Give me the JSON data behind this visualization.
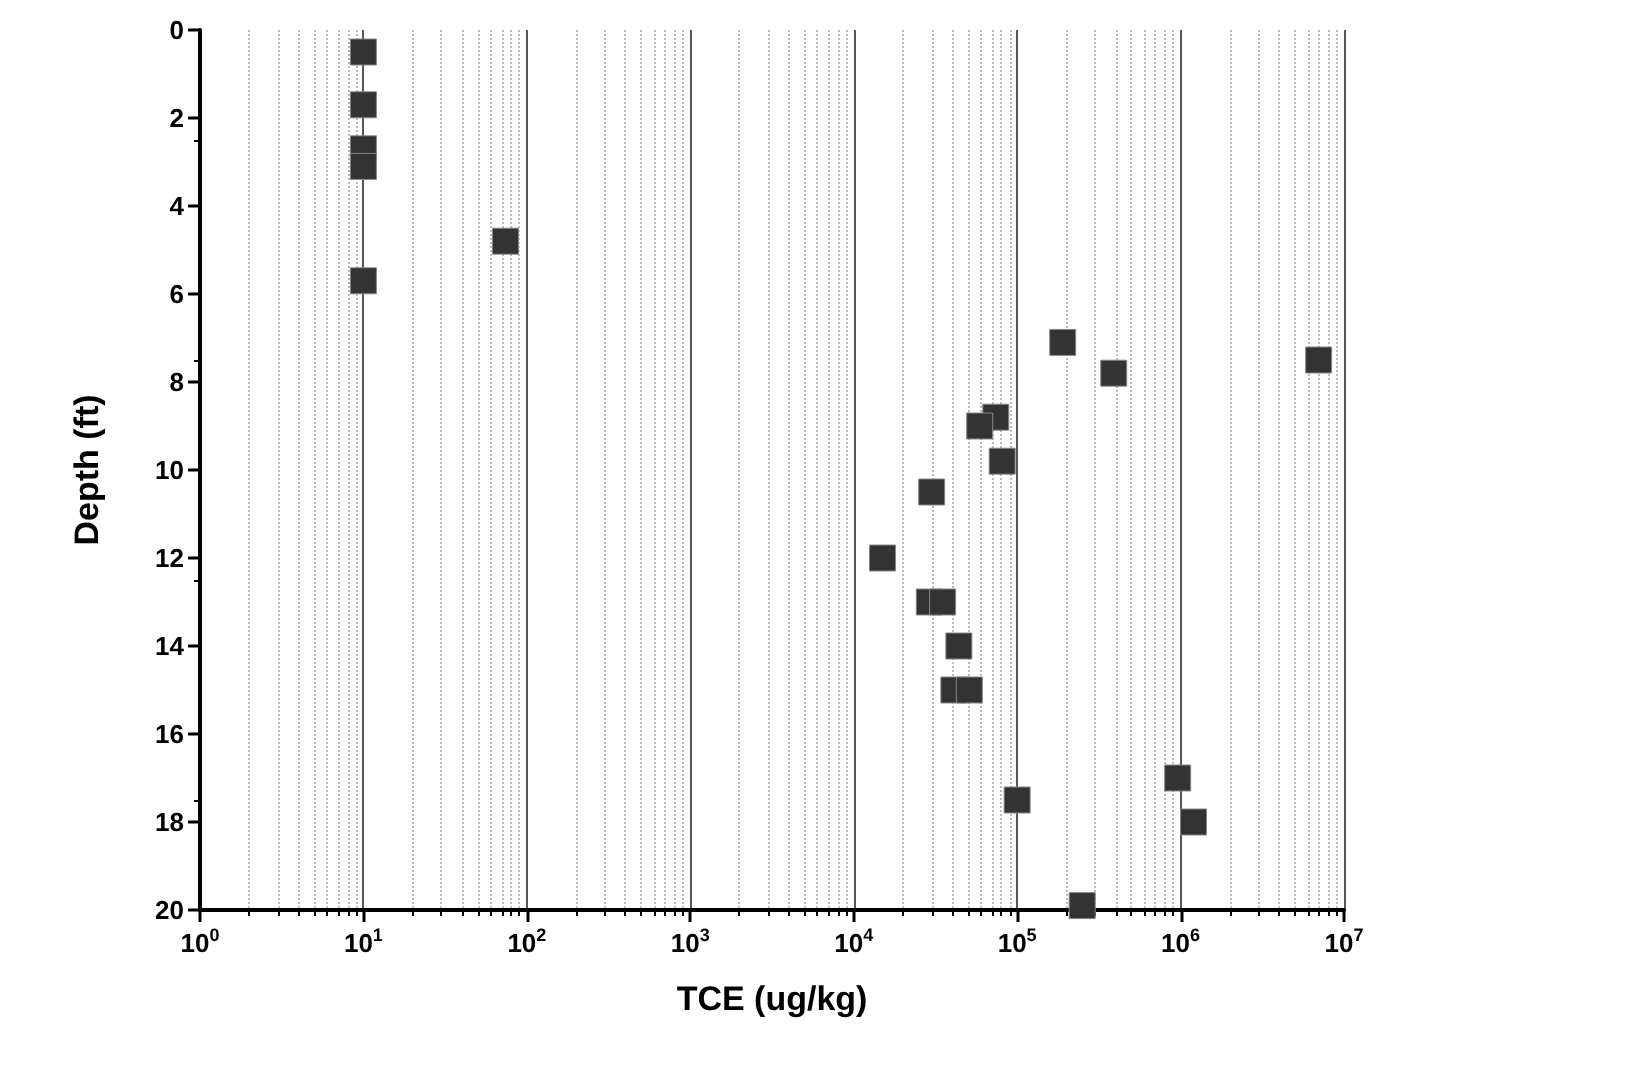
{
  "chart_data": {
    "type": "scatter",
    "xlabel": "TCE (ug/kg)",
    "ylabel": "Depth (ft)",
    "log": "x",
    "grid": "x",
    "marker": "square",
    "xlim": [
      1,
      10000000
    ],
    "xticks": [
      {
        "value": 1,
        "label": "10$^{0}$"
      },
      {
        "value": 10,
        "label": "10$^{1}$"
      },
      {
        "value": 100,
        "label": "10$^{2}$"
      },
      {
        "value": 1000,
        "label": "10$^{3}$"
      },
      {
        "value": 10000,
        "label": "10$^{4}$"
      },
      {
        "value": 100000,
        "label": "10$^{5}$"
      },
      {
        "value": 1000000,
        "label": "10$^{6}$"
      },
      {
        "value": 10000000,
        "label": "10$^{7}$"
      }
    ],
    "ylim": [
      20,
      0
    ],
    "yticks": [
      0,
      2,
      4,
      6,
      8,
      10,
      12,
      14,
      16,
      18,
      20
    ],
    "series": [
      {
        "color": "#333333",
        "x": [
          10,
          10,
          10,
          10,
          74,
          10,
          190000,
          390000,
          7000000,
          74000,
          59000,
          81000,
          30000,
          15000,
          29000,
          35000,
          44000,
          41000,
          51000,
          960000,
          100000,
          1200000,
          250000
        ],
        "values": [
          0.5,
          1.7,
          2.7,
          3.1,
          4.8,
          5.7,
          7.1,
          7.8,
          7.5,
          8.8,
          9.0,
          9.8,
          10.5,
          12.0,
          13.0,
          13.0,
          14.0,
          15.0,
          15.0,
          17.0,
          17.5,
          18.0,
          19.9
        ]
      }
    ]
  }
}
